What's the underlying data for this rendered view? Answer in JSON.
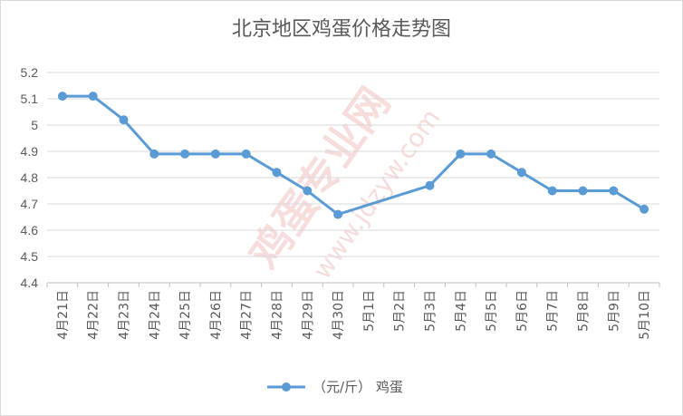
{
  "chart_data": {
    "type": "line",
    "title": "北京地区鸡蛋价格走势图",
    "categories": [
      "4月21日",
      "4月22日",
      "4月23日",
      "4月24日",
      "4月25日",
      "4月26日",
      "4月27日",
      "4月28日",
      "4月29日",
      "4月30日",
      "5月1日",
      "5月2日",
      "5月3日",
      "5月4日",
      "5月5日",
      "5月6日",
      "5月7日",
      "5月8日",
      "5月9日",
      "5月10日"
    ],
    "series": [
      {
        "name": "（元/斤） 鸡蛋",
        "values": [
          5.11,
          5.11,
          5.02,
          4.89,
          4.89,
          4.89,
          4.89,
          4.82,
          4.75,
          4.66,
          null,
          null,
          4.77,
          4.89,
          4.89,
          4.82,
          4.75,
          4.75,
          4.75,
          4.68
        ],
        "color": "#5b9bd5"
      }
    ],
    "ylim": [
      4.4,
      5.2
    ],
    "yticks": [
      "4.4",
      "4.5",
      "4.6",
      "4.7",
      "4.8",
      "4.9",
      "5",
      "5.1",
      "5.2"
    ],
    "grid": true,
    "legend": "bottom"
  },
  "watermark": {
    "text1": "鸡蛋专业网",
    "text2": "www.jdzyw.com",
    "color": "#f2c0c0"
  }
}
